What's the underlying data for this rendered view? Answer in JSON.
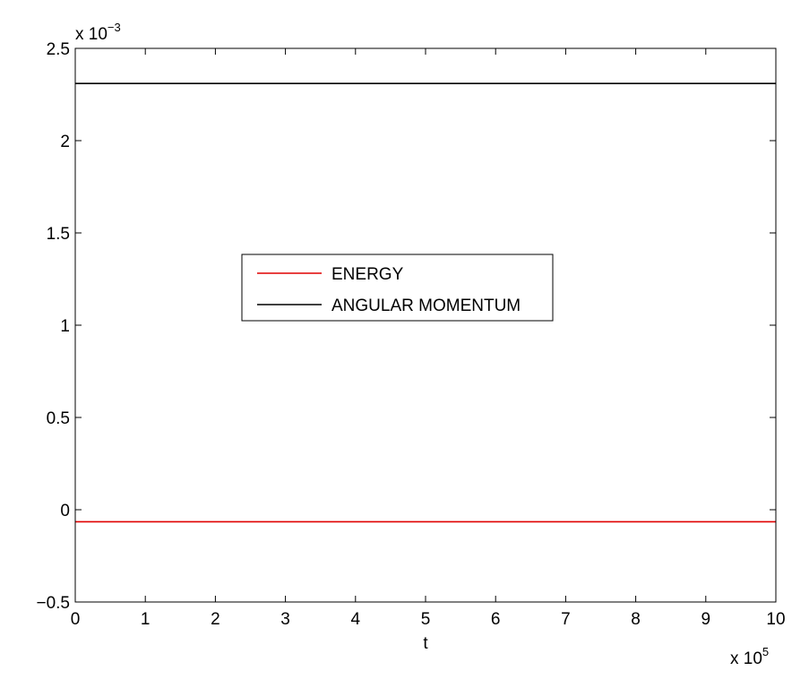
{
  "chart_data": {
    "type": "line",
    "title": "",
    "xlabel": "t",
    "ylabel": "",
    "x_multiplier": {
      "base": "x 10",
      "exponent": "5"
    },
    "y_multiplier": {
      "base": "x 10",
      "exponent": "−3"
    },
    "xlim": [
      0,
      10
    ],
    "ylim": [
      -0.5,
      2.5
    ],
    "x_ticks": [
      0,
      1,
      2,
      3,
      4,
      5,
      6,
      7,
      8,
      9,
      10
    ],
    "x_tick_labels": [
      "0",
      "1",
      "2",
      "3",
      "4",
      "5",
      "6",
      "7",
      "8",
      "9",
      "10"
    ],
    "y_ticks": [
      -0.5,
      0,
      0.5,
      1,
      1.5,
      2,
      2.5
    ],
    "y_tick_labels": [
      "−0.5",
      "0",
      "0.5",
      "1",
      "1.5",
      "2",
      "2.5"
    ],
    "grid": false,
    "legend_position": "center-left",
    "series": [
      {
        "name": "ENERGY",
        "color": "#e00000",
        "x": [
          0,
          10
        ],
        "y": [
          -0.065,
          -0.065
        ]
      },
      {
        "name": "ANGULAR MOMENTUM",
        "color": "#000000",
        "x": [
          0,
          10
        ],
        "y": [
          2.31,
          2.31
        ]
      }
    ]
  }
}
